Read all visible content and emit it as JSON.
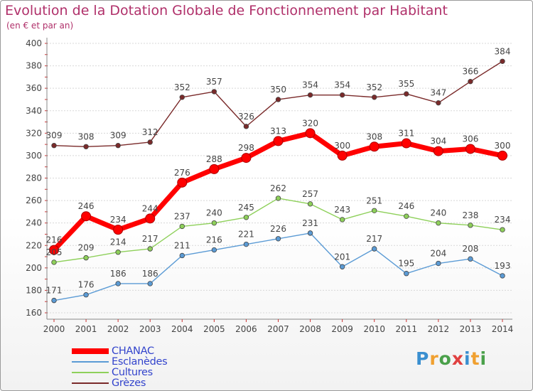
{
  "chart_data": {
    "type": "line",
    "title": "Evolution de la Dotation Globale de Fonctionnement par Habitant",
    "subtitle": "(en € et par an)",
    "categories": [
      "2000",
      "2001",
      "2002",
      "2003",
      "2004",
      "2005",
      "2006",
      "2007",
      "2008",
      "2009",
      "2010",
      "2011",
      "2012",
      "2013",
      "2014"
    ],
    "ylim": [
      160,
      400
    ],
    "yticks": [
      160,
      180,
      200,
      220,
      240,
      260,
      280,
      300,
      320,
      340,
      360,
      380,
      400
    ],
    "series": [
      {
        "name": "CHANAC",
        "color": "#ff0000",
        "values": [
          216,
          246,
          234,
          244,
          276,
          288,
          298,
          313,
          320,
          300,
          308,
          311,
          304,
          306,
          300
        ]
      },
      {
        "name": "Esclanèdes",
        "color": "#5b9bd5",
        "values": [
          171,
          176,
          186,
          186,
          211,
          216,
          221,
          226,
          231,
          201,
          217,
          195,
          204,
          208,
          193
        ]
      },
      {
        "name": "Cultures",
        "color": "#8ed05a",
        "values": [
          205,
          209,
          214,
          217,
          237,
          240,
          245,
          262,
          257,
          243,
          251,
          246,
          240,
          238,
          234
        ]
      },
      {
        "name": "Grèzes",
        "color": "#7a2a2a",
        "values": [
          309,
          308,
          309,
          312,
          352,
          357,
          326,
          350,
          354,
          354,
          352,
          355,
          347,
          366,
          384
        ]
      }
    ]
  },
  "logo": {
    "letters": [
      "P",
      "r",
      "o",
      "x",
      "i",
      "t",
      "i"
    ],
    "colors": [
      "#3a8fd0",
      "#f0a030",
      "#4aa04a",
      "#e04040",
      "#3a8fd0",
      "#f0a030",
      "#4aa04a"
    ]
  }
}
